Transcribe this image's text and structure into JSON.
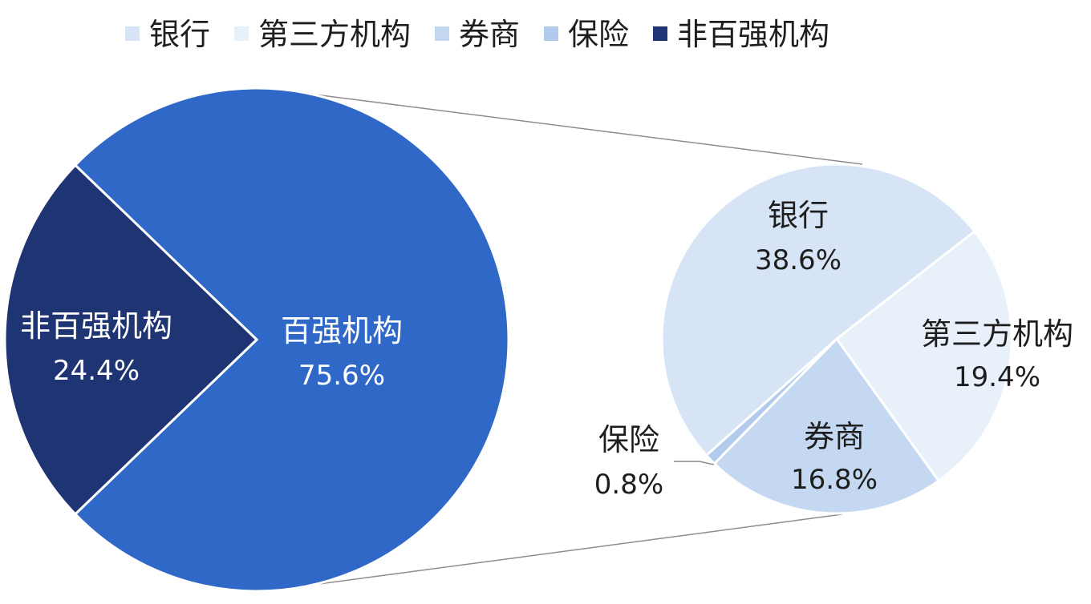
{
  "chart_data": {
    "type": "pie",
    "subtype": "pie-of-pie",
    "legend": {
      "position": "top",
      "entries": [
        {
          "label": "银行",
          "color": "#d6e4f6"
        },
        {
          "label": "第三方机构",
          "color": "#e8f0fa"
        },
        {
          "label": "券商",
          "color": "#c5d8f1"
        },
        {
          "label": "保险",
          "color": "#b2cbec"
        },
        {
          "label": "非百强机构",
          "color": "#1f3473"
        }
      ]
    },
    "main_pie": {
      "slices": [
        {
          "label": "百强机构",
          "value": 75.6,
          "value_text": "75.6%",
          "color": "#2f68c6"
        },
        {
          "label": "非百强机构",
          "value": 24.4,
          "value_text": "24.4%",
          "color": "#1f3473"
        }
      ]
    },
    "secondary_pie": {
      "breaks_out": "百强机构",
      "slices": [
        {
          "label": "银行",
          "value": 38.6,
          "value_text": "38.6%",
          "color": "#d6e4f6"
        },
        {
          "label": "第三方机构",
          "value": 19.4,
          "value_text": "19.4%",
          "color": "#e8f0fa"
        },
        {
          "label": "券商",
          "value": 16.8,
          "value_text": "16.8%",
          "color": "#c5d8f1"
        },
        {
          "label": "保险",
          "value": 0.8,
          "value_text": "0.8%",
          "color": "#b2cbec"
        }
      ]
    }
  }
}
